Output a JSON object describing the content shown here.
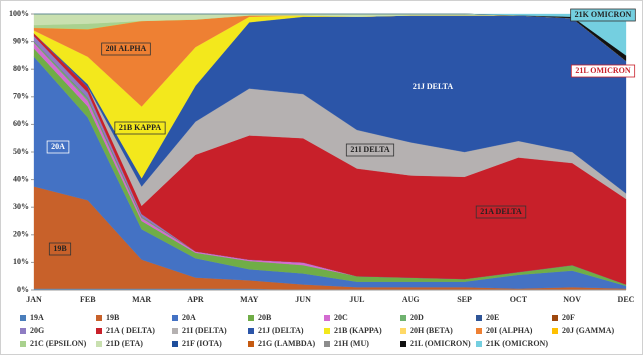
{
  "chart_data": {
    "type": "stacked_area_100",
    "categories": [
      "JAN",
      "FEB",
      "MAR",
      "APR",
      "MAY",
      "JUN",
      "JUL",
      "AUG",
      "SEP",
      "OCT",
      "NOV",
      "DEC"
    ],
    "ylim": [
      0,
      100
    ],
    "yticks": [
      {
        "value": 0,
        "label": "0%"
      },
      {
        "value": 10,
        "label": "10%"
      },
      {
        "value": 20,
        "label": "20%"
      },
      {
        "value": 30,
        "label": "30%"
      },
      {
        "value": 40,
        "label": "40%"
      },
      {
        "value": 50,
        "label": "50%"
      },
      {
        "value": 60,
        "label": "60%"
      },
      {
        "value": 70,
        "label": "70%"
      },
      {
        "value": 80,
        "label": "80%"
      },
      {
        "value": 90,
        "label": "90%"
      },
      {
        "value": 100,
        "label": "100%"
      }
    ],
    "series": [
      {
        "name": "19A",
        "color": "#4a7ebb",
        "values": [
          0.5,
          0.5,
          0.5,
          0.5,
          0.5,
          0,
          0,
          0,
          0,
          0,
          0,
          0
        ]
      },
      {
        "name": "19B",
        "color": "#c8612a",
        "values": [
          37,
          32,
          10.5,
          4,
          3,
          2,
          1,
          1,
          1,
          0.5,
          1,
          0.5
        ]
      },
      {
        "name": "20A",
        "color": "#4472c4",
        "values": [
          47,
          30,
          11,
          7,
          4,
          4,
          2,
          2,
          2,
          5,
          6,
          1
        ]
      },
      {
        "name": "20B",
        "color": "#70ad47",
        "values": [
          3,
          4,
          3,
          2,
          3,
          3,
          2,
          1.5,
          1,
          1,
          2,
          0.5
        ]
      },
      {
        "name": "20C",
        "color": "#d36bd1",
        "values": [
          2,
          2,
          1,
          0.5,
          0.5,
          1,
          0,
          0,
          0,
          0,
          0,
          0
        ]
      },
      {
        "name": "20D",
        "color": "#6fb26f",
        "values": [
          0.5,
          1,
          0.5,
          0,
          0,
          0,
          0,
          0,
          0,
          0,
          0,
          0
        ]
      },
      {
        "name": "20E",
        "color": "#2f5597",
        "values": [
          0,
          0,
          0,
          0,
          0,
          0,
          0,
          0,
          0,
          0,
          0,
          0
        ]
      },
      {
        "name": "20F",
        "color": "#9e480e",
        "values": [
          0,
          0,
          0,
          0,
          0,
          0,
          0,
          0,
          0,
          0,
          0,
          0
        ]
      },
      {
        "name": "20G",
        "color": "#8e7cc3",
        "values": [
          2,
          2,
          1,
          0,
          0,
          0,
          0,
          0,
          0,
          0,
          0,
          0
        ]
      },
      {
        "name": "21A ( DELTA)",
        "color": "#c8202a",
        "values": [
          1,
          2,
          3,
          35,
          45,
          45,
          39,
          37,
          37,
          41.5,
          37,
          31
        ]
      },
      {
        "name": "21I (DELTA)",
        "color": "#b5b1b1",
        "values": [
          0,
          0,
          7,
          12,
          17,
          16,
          14,
          12,
          9,
          6,
          4,
          2
        ]
      },
      {
        "name": "21J (DELTA)",
        "color": "#2b55a8",
        "values": [
          0,
          1,
          3,
          13,
          24,
          28,
          41,
          46,
          49.5,
          45.5,
          48.5,
          48
        ]
      },
      {
        "name": "21B (KAPPA)",
        "color": "#f3e81c",
        "values": [
          1,
          10,
          26,
          14,
          2,
          0.5,
          0,
          0,
          0,
          0,
          0,
          0
        ]
      },
      {
        "name": "20H (BETA)",
        "color": "#ffd966",
        "values": [
          0,
          0,
          0,
          0,
          0,
          0,
          0,
          0,
          0,
          0,
          0,
          0
        ]
      },
      {
        "name": "20I (ALPHA)",
        "color": "#ee8033",
        "values": [
          1,
          10,
          31,
          10,
          0.5,
          0,
          0,
          0,
          0,
          0,
          0,
          0
        ]
      },
      {
        "name": "20J (GAMMA)",
        "color": "#ffc000",
        "values": [
          0,
          0,
          0,
          0,
          0,
          0,
          0,
          0,
          0,
          0,
          0,
          0
        ]
      },
      {
        "name": "21C (EPSILON)",
        "color": "#a9d18e",
        "values": [
          1,
          2,
          0,
          0,
          0,
          0,
          0,
          0,
          0,
          0,
          0,
          0
        ]
      },
      {
        "name": "21D (ETA)",
        "color": "#c9e0b0",
        "values": [
          4,
          3.5,
          2.5,
          2,
          0.5,
          0.5,
          1,
          0.5,
          0.5,
          0,
          0,
          0
        ]
      },
      {
        "name": "21F (IOTA)",
        "color": "#1f4e9c",
        "values": [
          0,
          0,
          0,
          0,
          0,
          0,
          0,
          0,
          0,
          0,
          0,
          0
        ]
      },
      {
        "name": "21G (LAMBDA)",
        "color": "#c55a11",
        "values": [
          0,
          0,
          0,
          0,
          0,
          0,
          0,
          0,
          0,
          0,
          0,
          0
        ]
      },
      {
        "name": "21H (MU)",
        "color": "#8c8c8c",
        "values": [
          0,
          0,
          0,
          0,
          0,
          0,
          0,
          0,
          0,
          0,
          0,
          0
        ]
      },
      {
        "name": "21L (OMICRON)",
        "color": "#111111",
        "values": [
          0,
          0,
          0,
          0,
          0,
          0,
          0,
          0,
          0,
          0,
          0.5,
          2
        ]
      },
      {
        "name": "21K (OMICRON)",
        "color": "#74cfe0",
        "values": [
          0,
          0,
          0,
          0,
          0,
          0,
          0,
          0,
          0,
          0.5,
          1,
          15
        ]
      }
    ],
    "annotations": [
      "20I ALPHA",
      "21B KAPPA",
      "20A",
      "19B",
      "21J DELTA",
      "21I DELTA",
      "21A DELTA",
      "21K OMICRON",
      "21L OMICRON"
    ]
  }
}
